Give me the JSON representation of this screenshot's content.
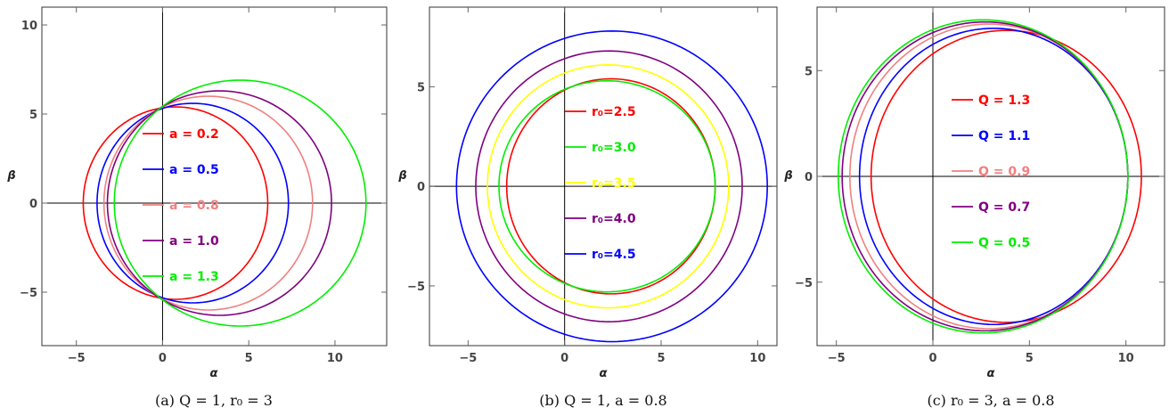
{
  "chart_data": [
    {
      "type": "line",
      "caption": "(a) Q = 1, r₀ = 3",
      "xlabel": "α",
      "ylabel": "β",
      "xlim": [
        -7,
        13
      ],
      "ylim": [
        -8,
        11
      ],
      "xticks": [
        -5,
        0,
        5,
        10
      ],
      "yticks": [
        -5,
        0,
        5,
        10
      ],
      "grid": false,
      "legend_position": "center",
      "series": [
        {
          "name": "a = 0.2",
          "color": "#ff0000",
          "curve": {
            "x_min": -4.6,
            "x_max": 6.1,
            "y_min": -5.4,
            "y_max": 5.4
          }
        },
        {
          "name": "a = 0.5",
          "color": "#0000ff",
          "curve": {
            "x_min": -3.8,
            "x_max": 7.3,
            "y_min": -5.6,
            "y_max": 5.6
          }
        },
        {
          "name": "a = 0.8",
          "color": "#f08080",
          "curve": {
            "x_min": -3.4,
            "x_max": 8.7,
            "y_min": -6.0,
            "y_max": 6.0
          }
        },
        {
          "name": "a = 1.0",
          "color": "#800080",
          "curve": {
            "x_min": -3.2,
            "x_max": 9.8,
            "y_min": -6.3,
            "y_max": 6.3
          }
        },
        {
          "name": "a = 1.3",
          "color": "#00ee00",
          "curve": {
            "x_min": -2.8,
            "x_max": 11.8,
            "y_min": -6.9,
            "y_max": 6.9
          }
        }
      ]
    },
    {
      "type": "line",
      "caption": "(b) Q = 1, a = 0.8",
      "xlabel": "α",
      "ylabel": "β",
      "xlim": [
        -7,
        11
      ],
      "ylim": [
        -8,
        9
      ],
      "xticks": [
        -5,
        0,
        5,
        10
      ],
      "yticks": [
        -5,
        0,
        5
      ],
      "grid": false,
      "legend_position": "center",
      "series": [
        {
          "name": "r₀=2.5",
          "color": "#ff0000",
          "curve": {
            "x_min": -3.0,
            "x_max": 7.8,
            "y_min": -5.4,
            "y_max": 5.4
          }
        },
        {
          "name": "r₀=3.0",
          "color": "#00ee00",
          "curve": {
            "x_min": -3.4,
            "x_max": 7.8,
            "y_min": -5.3,
            "y_max": 5.3
          }
        },
        {
          "name": "r₀=3.5",
          "color": "#ffff00",
          "curve": {
            "x_min": -4.0,
            "x_max": 8.5,
            "y_min": -6.1,
            "y_max": 6.1
          }
        },
        {
          "name": "r₀=4.0",
          "color": "#800080",
          "curve": {
            "x_min": -4.6,
            "x_max": 9.2,
            "y_min": -6.8,
            "y_max": 6.8
          }
        },
        {
          "name": "r₀=4.5",
          "color": "#0000ff",
          "curve": {
            "x_min": -5.6,
            "x_max": 10.5,
            "y_min": -7.8,
            "y_max": 7.8
          }
        }
      ]
    },
    {
      "type": "line",
      "caption": "(c) r₀ = 3, a = 0.8",
      "xlabel": "α",
      "ylabel": "β",
      "xlim": [
        -6,
        12
      ],
      "ylim": [
        -8,
        8
      ],
      "xticks": [
        -5,
        0,
        5,
        10
      ],
      "yticks": [
        -5,
        0,
        5
      ],
      "grid": false,
      "legend_position": "center",
      "series": [
        {
          "name": "Q = 1.3",
          "color": "#ff0000",
          "curve": {
            "x_min": -3.2,
            "x_max": 10.8,
            "y_min": -6.9,
            "y_max": 6.9
          }
        },
        {
          "name": "Q = 1.1",
          "color": "#0000ff",
          "curve": {
            "x_min": -3.8,
            "x_max": 10.1,
            "y_min": -7.0,
            "y_max": 7.0
          }
        },
        {
          "name": "Q = 0.9",
          "color": "#f08080",
          "curve": {
            "x_min": -4.3,
            "x_max": 10.1,
            "y_min": -7.2,
            "y_max": 7.2
          }
        },
        {
          "name": "Q = 0.7",
          "color": "#800080",
          "curve": {
            "x_min": -4.7,
            "x_max": 10.1,
            "y_min": -7.3,
            "y_max": 7.3
          }
        },
        {
          "name": "Q = 0.5",
          "color": "#00ee00",
          "curve": {
            "x_min": -4.9,
            "x_max": 10.1,
            "y_min": -7.4,
            "y_max": 7.4
          }
        }
      ]
    }
  ]
}
